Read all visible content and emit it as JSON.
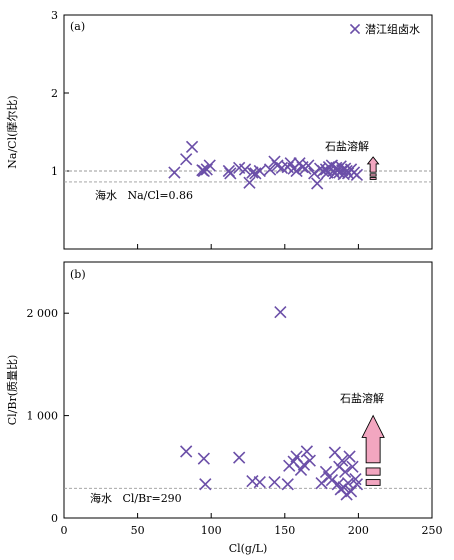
{
  "chart_data": [
    {
      "type": "scatter",
      "panel_label": "(a)",
      "ylabel": "Na/Cl(摩尔比)",
      "xlim": [
        0,
        250
      ],
      "ylim": [
        0,
        3
      ],
      "y_ticks": [
        1,
        2,
        3
      ],
      "y_tick_labels": [
        "1",
        "2",
        "3"
      ],
      "legend": {
        "label": "潜江组卤水",
        "position": "top-right"
      },
      "reference_lines": [
        {
          "y": 1.0
        },
        {
          "y": 0.86,
          "label": "海水   Na/Cl=0.86"
        }
      ],
      "annotation": {
        "text": "石盐溶解",
        "arrow_x": 210,
        "arrow_y_range": [
          0.88,
          1.18
        ],
        "direction": "up"
      },
      "series": [
        {
          "name": "潜江组卤水",
          "marker": "x",
          "color": "#6b4fa8",
          "points": [
            [
              75,
              0.98
            ],
            [
              83,
              1.15
            ],
            [
              87,
              1.31
            ],
            [
              94,
              1.01
            ],
            [
              95,
              1.0
            ],
            [
              97,
              1.02
            ],
            [
              99,
              1.07
            ],
            [
              112,
              1.0
            ],
            [
              113,
              0.97
            ],
            [
              119,
              1.04
            ],
            [
              123,
              1.02
            ],
            [
              126,
              0.85
            ],
            [
              128,
              0.98
            ],
            [
              130,
              0.97
            ],
            [
              133,
              1.0
            ],
            [
              140,
              1.02
            ],
            [
              143,
              1.12
            ],
            [
              145,
              1.07
            ],
            [
              148,
              1.04
            ],
            [
              152,
              1.05
            ],
            [
              154,
              1.1
            ],
            [
              156,
              1.03
            ],
            [
              158,
              1.0
            ],
            [
              160,
              1.1
            ],
            [
              162,
              1.05
            ],
            [
              164,
              1.03
            ],
            [
              166,
              1.07
            ],
            [
              170,
              0.97
            ],
            [
              172,
              0.84
            ],
            [
              174,
              1.03
            ],
            [
              176,
              1.0
            ],
            [
              178,
              1.02
            ],
            [
              179,
              0.98
            ],
            [
              180,
              1.05
            ],
            [
              182,
              1.07
            ],
            [
              183,
              1.0
            ],
            [
              184,
              0.97
            ],
            [
              185,
              1.04
            ],
            [
              186,
              1.02
            ],
            [
              187,
              0.98
            ],
            [
              188,
              1.06
            ],
            [
              189,
              1.01
            ],
            [
              190,
              0.96
            ],
            [
              191,
              1.03
            ],
            [
              192,
              1.0
            ],
            [
              193,
              0.97
            ],
            [
              195,
              1.02
            ],
            [
              197,
              0.98
            ],
            [
              199,
              0.95
            ]
          ]
        }
      ]
    },
    {
      "type": "scatter",
      "panel_label": "(b)",
      "ylabel": "Cl/Br(质量比)",
      "xlabel": "Cl(g/L)",
      "xlim": [
        0,
        250
      ],
      "ylim": [
        0,
        2500
      ],
      "x_ticks": [
        0,
        50,
        100,
        150,
        200,
        250
      ],
      "x_tick_labels": [
        "0",
        "50",
        "100",
        "150",
        "200",
        "250"
      ],
      "y_ticks": [
        0,
        1000,
        2000
      ],
      "y_tick_labels": [
        "0",
        "1 000",
        "2 000"
      ],
      "reference_lines": [
        {
          "y": 290,
          "label": "海水   Cl/Br=290"
        }
      ],
      "annotation": {
        "text": "石盐溶解",
        "arrow_x": 210,
        "arrow_y_range": [
          290,
          1000
        ],
        "direction": "up"
      },
      "series": [
        {
          "name": "潜江组卤水",
          "marker": "x",
          "color": "#6b4fa8",
          "points": [
            [
              83,
              650
            ],
            [
              95,
              580
            ],
            [
              96,
              330
            ],
            [
              119,
              590
            ],
            [
              128,
              360
            ],
            [
              133,
              350
            ],
            [
              143,
              350
            ],
            [
              147,
              2010
            ],
            [
              152,
              330
            ],
            [
              153,
              510
            ],
            [
              156,
              550
            ],
            [
              158,
              600
            ],
            [
              161,
              470
            ],
            [
              163,
              520
            ],
            [
              165,
              650
            ],
            [
              167,
              560
            ],
            [
              175,
              340
            ],
            [
              178,
              450
            ],
            [
              180,
              400
            ],
            [
              182,
              370
            ],
            [
              184,
              640
            ],
            [
              186,
              330
            ],
            [
              187,
              500
            ],
            [
              188,
              280
            ],
            [
              189,
              560
            ],
            [
              190,
              300
            ],
            [
              191,
              450
            ],
            [
              192,
              230
            ],
            [
              193,
              340
            ],
            [
              194,
              600
            ],
            [
              195,
              260
            ],
            [
              196,
              500
            ],
            [
              198,
              380
            ],
            [
              199,
              330
            ]
          ]
        }
      ]
    }
  ]
}
